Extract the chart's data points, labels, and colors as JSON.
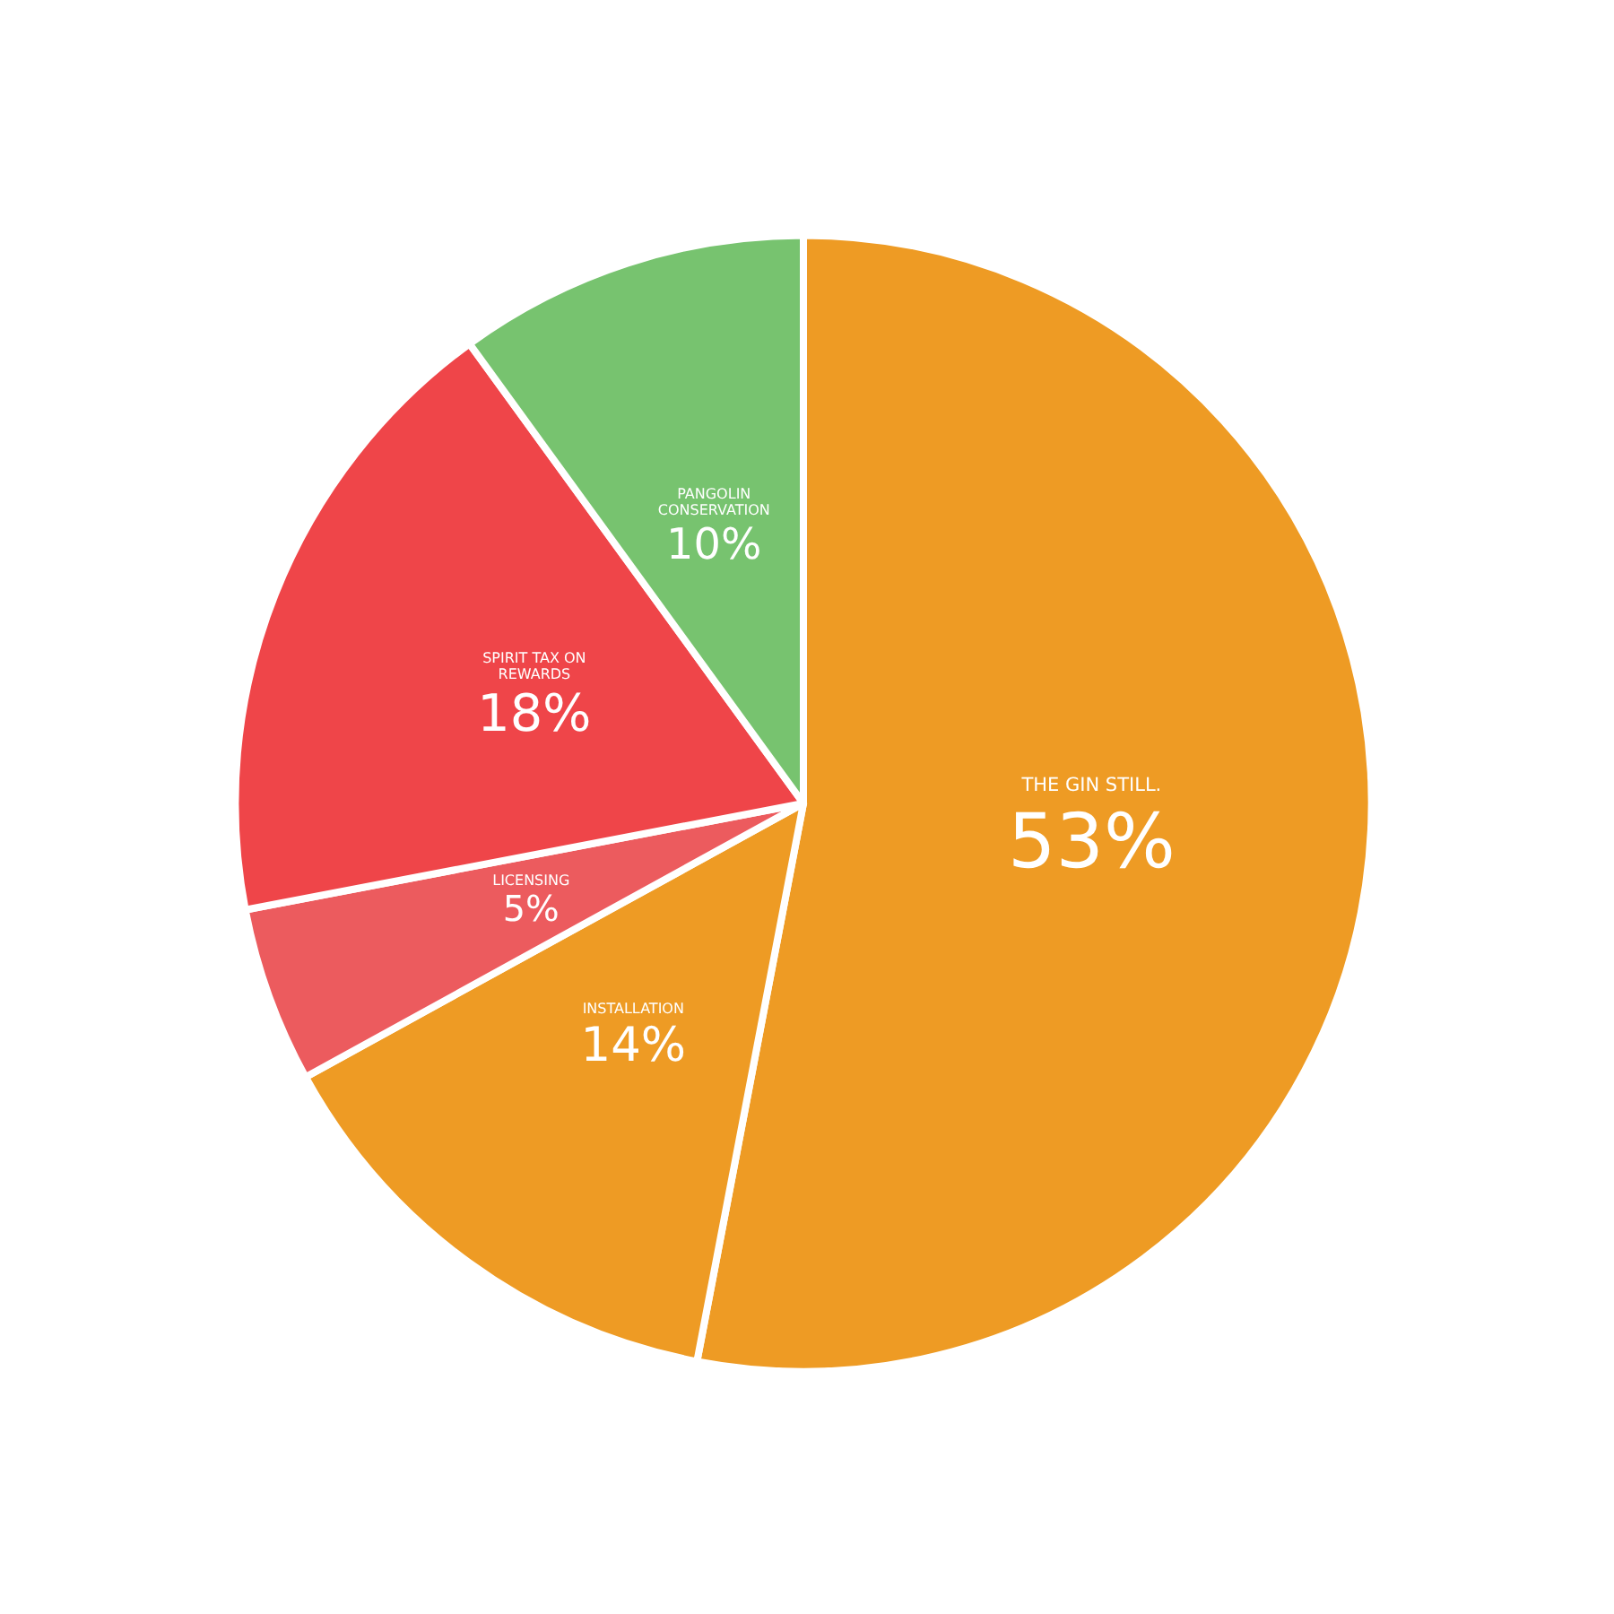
{
  "chart_data": {
    "type": "pie",
    "categories": [
      "THE GIN STILL.",
      "INSTALLATION",
      "LICENSING",
      "SPIRIT TAX ON REWARDS",
      "PANGOLIN CONSERVATION"
    ],
    "values": [
      53,
      14,
      5,
      18,
      10
    ],
    "value_labels": [
      "53%",
      "14%",
      "5%",
      "18%",
      "10%"
    ],
    "colors": [
      "#ee9b24",
      "#ee9b24",
      "#ec5b5e",
      "#ef4549",
      "#77c36f"
    ],
    "legend": false
  }
}
